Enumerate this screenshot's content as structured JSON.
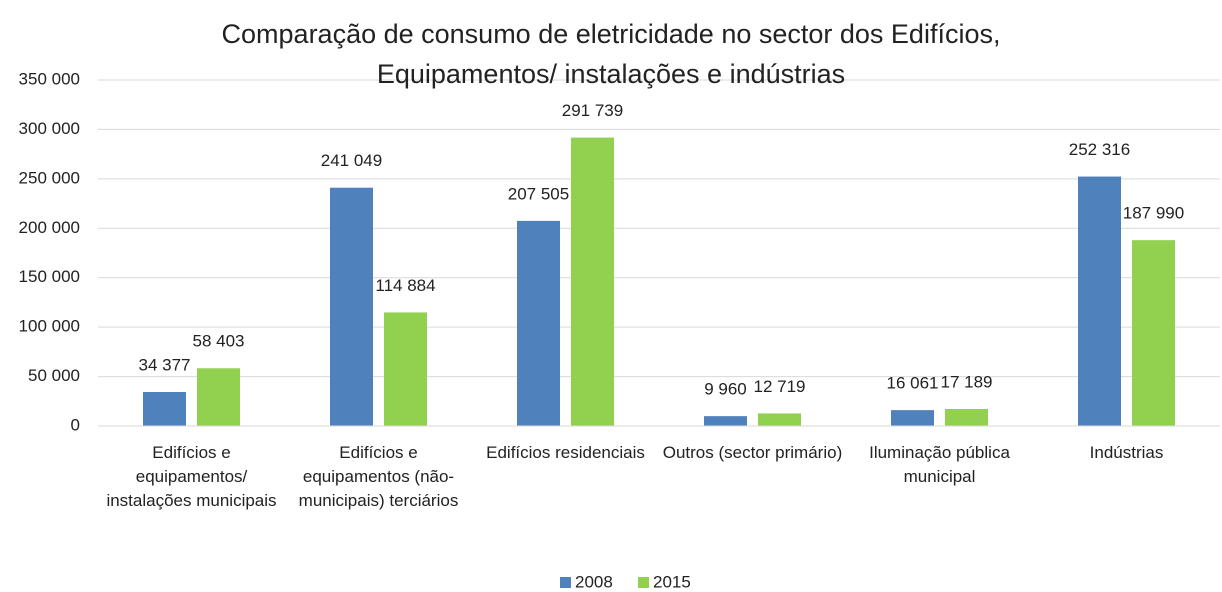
{
  "chart_data": {
    "type": "bar",
    "title": "Comparação de consumo de eletricidade no sector dos Edifícios, Equipamentos/ instalações e indústrias",
    "categories": [
      "Edifícios e equipamentos/ instalações municipais",
      "Edifícios e equipamentos (não-municipais) terciários",
      "Edifícios residenciais",
      "Outros (sector primário)",
      "Iluminação pública municipal",
      "Indústrias"
    ],
    "series": [
      {
        "name": "2008",
        "color": "#4f81bd",
        "values": [
          34377,
          241049,
          207505,
          9960,
          16061,
          252316
        ],
        "value_labels": [
          "34 377",
          "241 049",
          "207 505",
          "9 960",
          "16 061",
          "252 316"
        ]
      },
      {
        "name": "2015",
        "color": "#92d050",
        "values": [
          58403,
          114884,
          291739,
          12719,
          17189,
          187990
        ],
        "value_labels": [
          "58 403",
          "114 884",
          "291 739",
          "12 719",
          "17 189",
          "187 990"
        ]
      }
    ],
    "ylim": [
      0,
      350000
    ],
    "yticks": [
      0,
      {
        "value": 50000,
        "label": "50 000"
      },
      {
        "value": 100000,
        "label": "100 000"
      },
      {
        "value": 150000,
        "label": "150 000"
      },
      {
        "value": 200000,
        "label": "200 000"
      },
      {
        "value": 250000,
        "label": "250 000"
      },
      {
        "value": 300000,
        "label": "300 000"
      },
      {
        "value": 350000,
        "label": "350 000"
      }
    ],
    "grid": true,
    "legend": "bottom"
  }
}
